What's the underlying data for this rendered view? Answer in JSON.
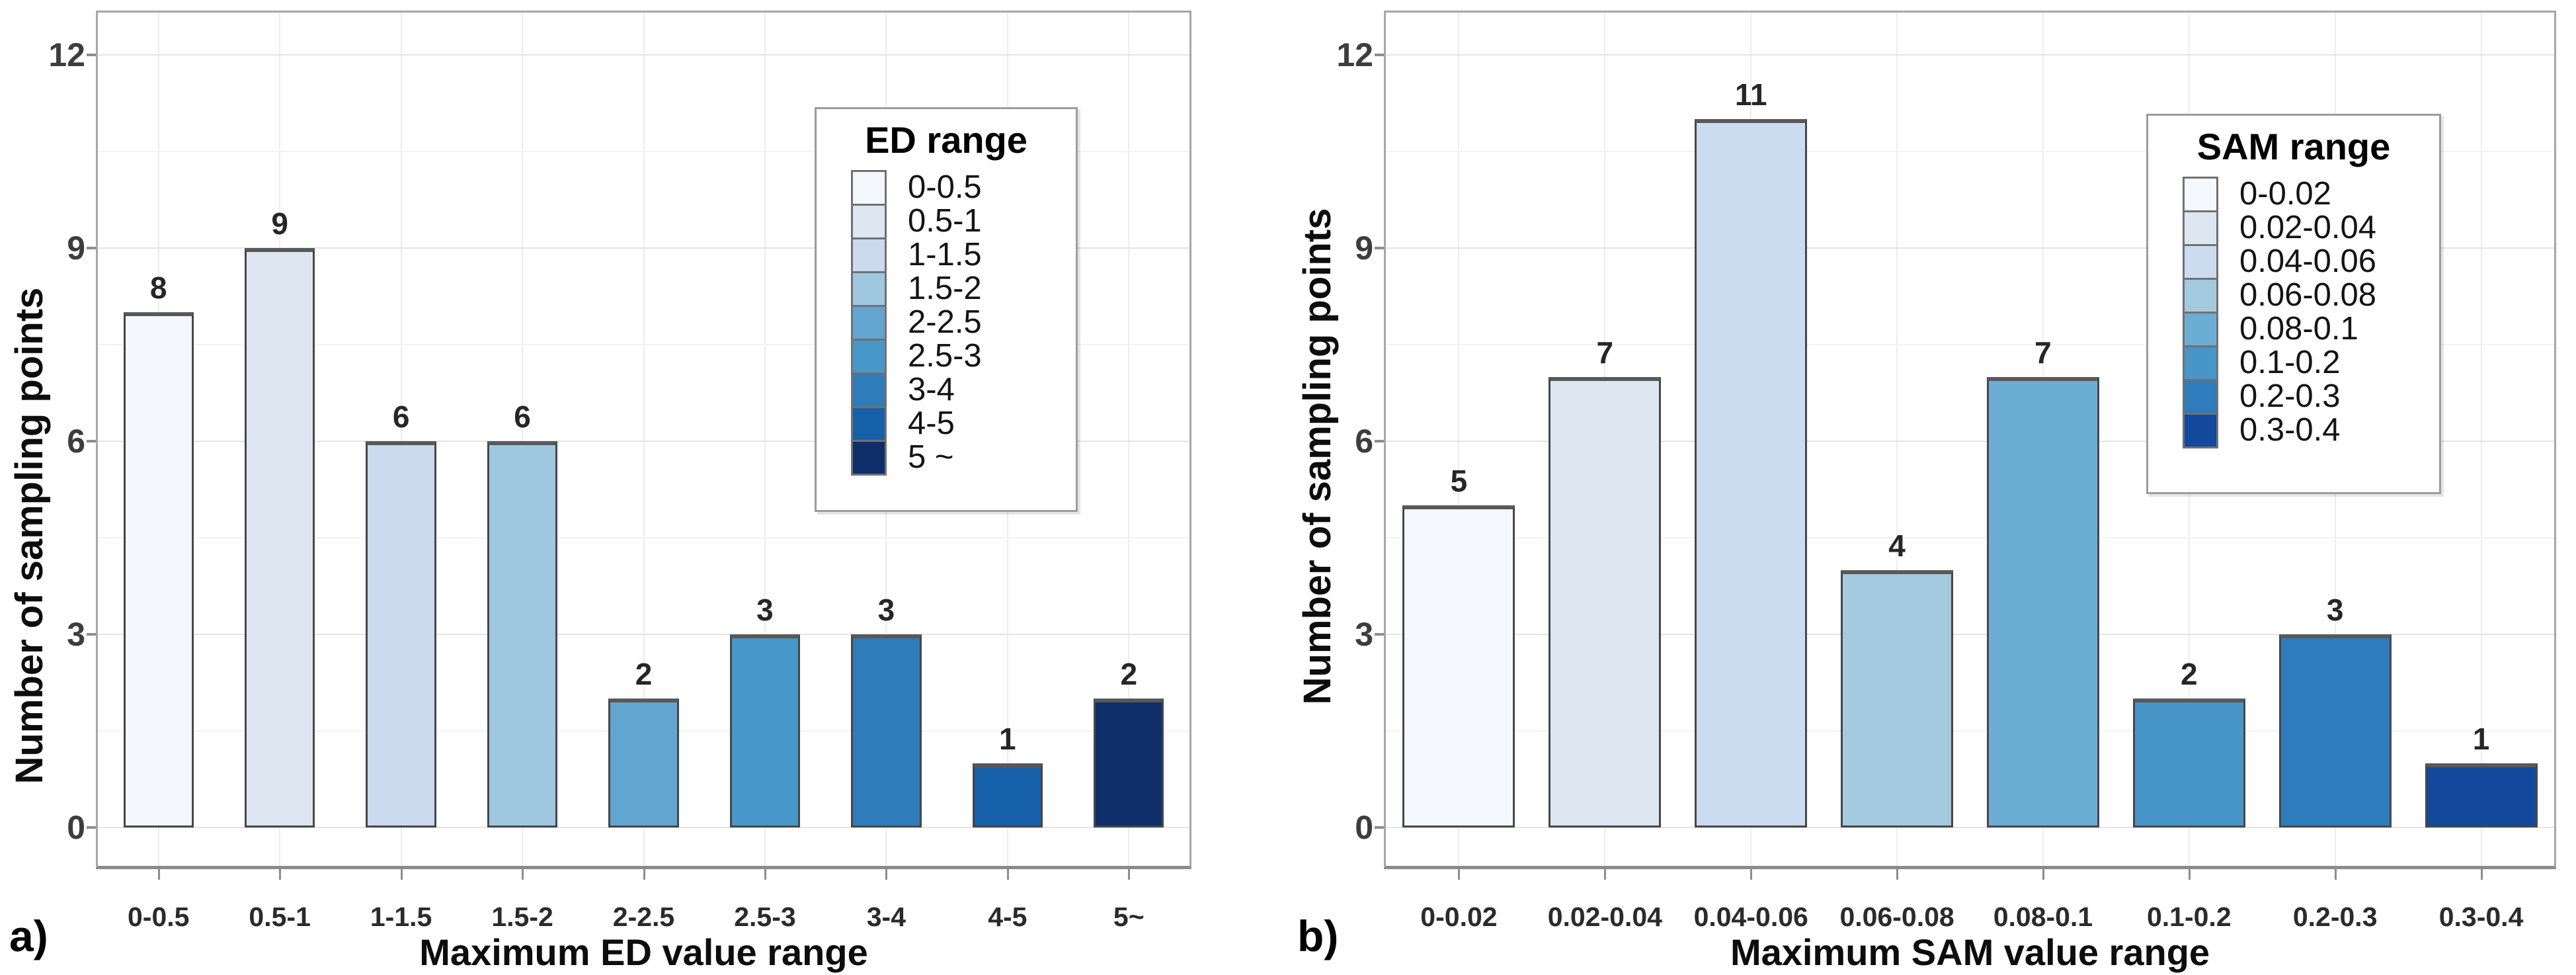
{
  "figure": {
    "panel_letters": [
      "a)",
      "b)"
    ],
    "background": "#ffffff"
  },
  "chart_data": [
    {
      "type": "bar",
      "panel": "a",
      "categories": [
        "0-0.5",
        "0.5-1",
        "1-1.5",
        "1.5-2",
        "2-2.5",
        "2.5-3",
        "3-4",
        "4-5",
        "5~"
      ],
      "values": [
        8,
        9,
        6,
        6,
        2,
        3,
        3,
        1,
        2
      ],
      "bar_colors": [
        "#f4f8fd",
        "#dde6f1",
        "#cbdaee",
        "#a0c7e0",
        "#62a5d1",
        "#4897c9",
        "#2f7cba",
        "#1560a9",
        "#0d2e69"
      ],
      "xlabel": "Maximum ED value range",
      "ylabel": "Number of sampling points",
      "yticks": [
        0,
        3,
        6,
        9,
        12
      ],
      "ylim": [
        0,
        12.8
      ],
      "grid": true,
      "legend": {
        "title": "ED range",
        "position": "inside-top-right",
        "labels": [
          "0-0.5",
          "0.5-1",
          "1-1.5",
          "1.5-2",
          "2-2.5",
          "2.5-3",
          "3-4",
          "4-5",
          "5 ~"
        ]
      }
    },
    {
      "type": "bar",
      "panel": "b",
      "categories": [
        "0-0.02",
        "0.02-0.04",
        "0.04-0.06",
        "0.06-0.08",
        "0.08-0.1",
        "0.1-0.2",
        "0.2-0.3",
        "0.3-0.4"
      ],
      "values": [
        5,
        7,
        11,
        4,
        7,
        2,
        3,
        1
      ],
      "bar_colors": [
        "#f5f9fe",
        "#dde7f2",
        "#ccdcf0",
        "#a3cade",
        "#6cadd4",
        "#4895c7",
        "#2e7cbb",
        "#12499c"
      ],
      "xlabel": "Maximum SAM value range",
      "ylabel": "Number of sampling points",
      "yticks": [
        0,
        3,
        6,
        9,
        12
      ],
      "ylim": [
        0,
        12.8
      ],
      "grid": true,
      "legend": {
        "title": "SAM range",
        "position": "inside-top-right",
        "labels": [
          "0-0.02",
          "0.02-0.04",
          "0.04-0.06",
          "0.06-0.08",
          "0.08-0.1",
          "0.1-0.2",
          "0.2-0.3",
          "0.3-0.4"
        ]
      }
    }
  ]
}
